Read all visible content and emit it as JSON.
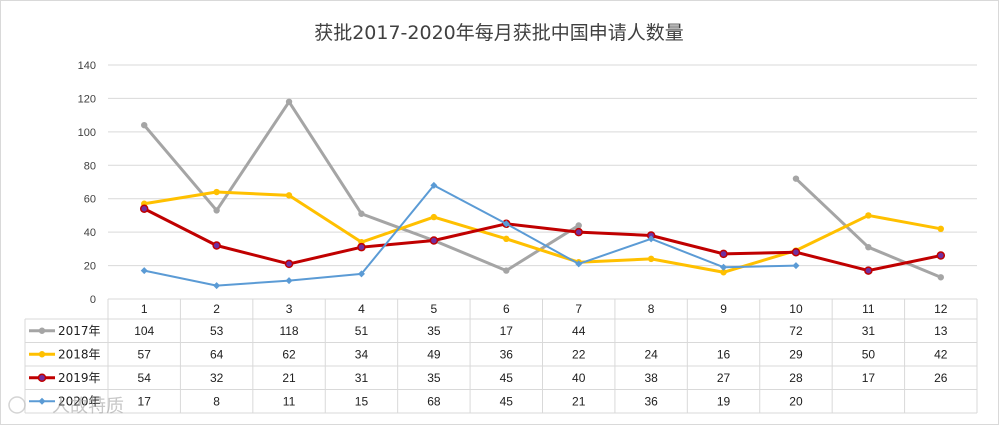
{
  "chart_data": {
    "type": "line",
    "title": "获批2017-2020年每月获批中国申请人数量",
    "categories": [
      "1",
      "2",
      "3",
      "4",
      "5",
      "6",
      "7",
      "8",
      "9",
      "10",
      "11",
      "12"
    ],
    "ylim": [
      0,
      140
    ],
    "yticks": [
      0,
      20,
      40,
      60,
      80,
      100,
      120,
      140
    ],
    "grid": true,
    "legend": "data-table-left",
    "series": [
      {
        "name": "2017年",
        "color": "#a5a5a5",
        "values": [
          104,
          53,
          118,
          51,
          35,
          17,
          44,
          null,
          null,
          72,
          31,
          13
        ]
      },
      {
        "name": "2018年",
        "color": "#ffc000",
        "values": [
          57,
          64,
          62,
          34,
          49,
          36,
          22,
          24,
          16,
          29,
          50,
          42
        ]
      },
      {
        "name": "2019年",
        "color": "#c00000",
        "values": [
          54,
          32,
          21,
          31,
          35,
          45,
          40,
          38,
          27,
          28,
          17,
          26
        ]
      },
      {
        "name": "2020年",
        "color": "#5b9bd5",
        "values": [
          17,
          8,
          11,
          15,
          68,
          45,
          21,
          36,
          19,
          20,
          null,
          null
        ]
      }
    ]
  },
  "watermark": "人故特质"
}
